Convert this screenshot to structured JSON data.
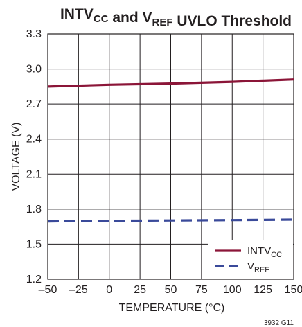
{
  "chart_data": {
    "type": "line",
    "title": {
      "parts": [
        {
          "text": "INTV",
          "sub": "CC"
        },
        {
          "text": " and V",
          "sub": "REF"
        },
        {
          "text": " UVLO Threshold",
          "sub": ""
        }
      ]
    },
    "xlabel": "TEMPERATURE (°C)",
    "ylabel": "VOLTAGE (V)",
    "xlim": [
      -50,
      150
    ],
    "ylim": [
      1.2,
      3.3
    ],
    "xticks": [
      -50,
      -25,
      0,
      25,
      50,
      75,
      100,
      125,
      150
    ],
    "xtick_labels": [
      "–50",
      "–25",
      "0",
      "25",
      "50",
      "75",
      "100",
      "125",
      "150"
    ],
    "yticks": [
      1.2,
      1.5,
      1.8,
      2.1,
      2.4,
      2.7,
      3.0,
      3.3
    ],
    "ytick_labels": [
      "1.2",
      "1.5",
      "1.8",
      "2.1",
      "2.4",
      "2.7",
      "3.0",
      "3.3"
    ],
    "grid": true,
    "legend_position": "bottom-right",
    "series": [
      {
        "name": "INTV",
        "name_sub": "CC",
        "color": "#8b1538",
        "style": "solid",
        "x": [
          -50,
          0,
          50,
          100,
          125,
          150
        ],
        "y": [
          2.85,
          2.865,
          2.875,
          2.89,
          2.9,
          2.91
        ]
      },
      {
        "name": "V",
        "name_sub": "REF",
        "color": "#3a4a9a",
        "style": "dashed",
        "x": [
          -50,
          0,
          50,
          100,
          150
        ],
        "y": [
          1.695,
          1.7,
          1.703,
          1.706,
          1.71
        ]
      }
    ],
    "footnote": "3932 G11"
  }
}
